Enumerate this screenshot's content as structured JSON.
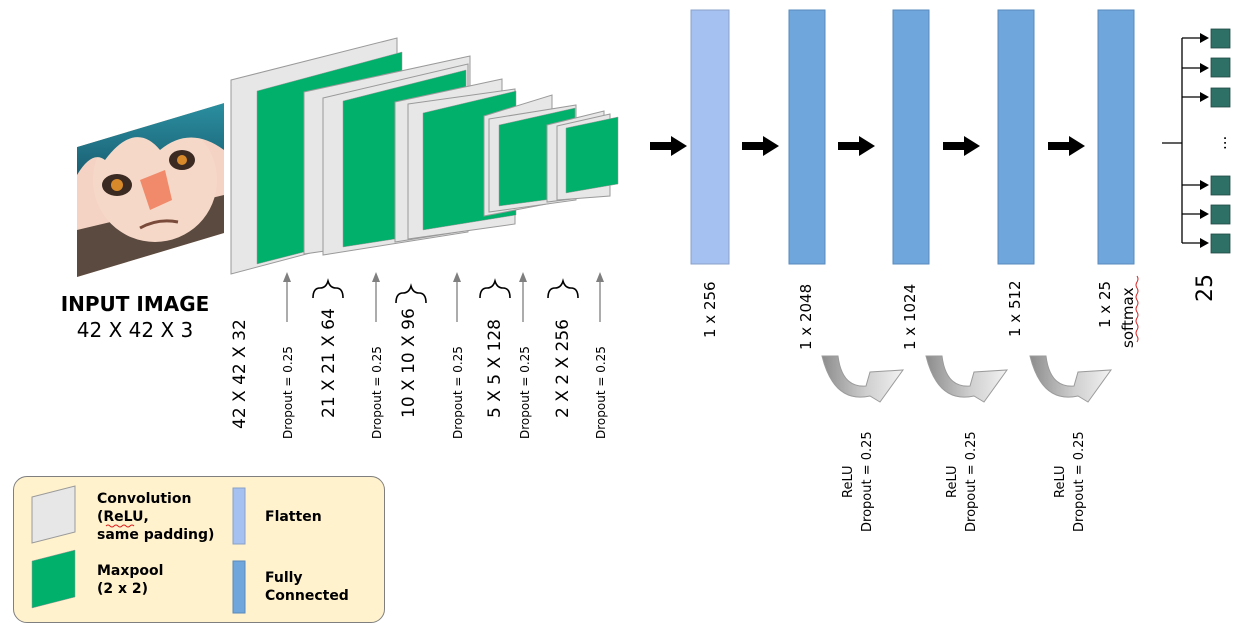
{
  "input": {
    "title": "INPUT IMAGE",
    "size": "42 X 42 X 3"
  },
  "conv_blocks": [
    {
      "label": "42 X 42 X 32",
      "dropout": "Dropout = 0.25"
    },
    {
      "label": "21 X 21 X 64",
      "dropout": "Dropout = 0.25"
    },
    {
      "label": "10 X 10 X 96",
      "dropout": "Dropout = 0.25"
    },
    {
      "label": "5 X 5 X 128",
      "dropout": "Dropout = 0.25"
    },
    {
      "label": "2 X 2 X 256",
      "dropout": "Dropout = 0.25"
    }
  ],
  "dense_layers": [
    {
      "label": "1 x 256",
      "kind": "flatten"
    },
    {
      "label": "1 x 2048",
      "kind": "fully-connected"
    },
    {
      "label": "1 x 1024",
      "kind": "fully-connected"
    },
    {
      "label": "1 x 512",
      "kind": "fully-connected"
    },
    {
      "label": "1 x 25",
      "sublabel": "softmax",
      "kind": "fully-connected"
    }
  ],
  "transitions": [
    {
      "activation": "ReLU",
      "dropout": "Dropout = 0.25"
    },
    {
      "activation": "ReLU",
      "dropout": "Dropout = 0.25"
    },
    {
      "activation": "ReLU",
      "dropout": "Dropout = 0.25"
    }
  ],
  "output": {
    "count_label": "25",
    "ellipsis": "..."
  },
  "legend": {
    "convolution_line1": "Convolution",
    "convolution_line2": "(ReLU,",
    "convolution_line3": "same padding)",
    "maxpool_line1": "Maxpool",
    "maxpool_line2": "(2 x 2)",
    "flatten": "Flatten",
    "fc_line1": "Fully",
    "fc_line2": "Connected"
  },
  "colors": {
    "conv": "#e7e7e7",
    "maxpool": "#00b06b",
    "flatten": "#a4c1f1",
    "fully_connected": "#6fa6dc",
    "output_node": "#2e6f66",
    "legend_bg": "#fff2cc"
  }
}
